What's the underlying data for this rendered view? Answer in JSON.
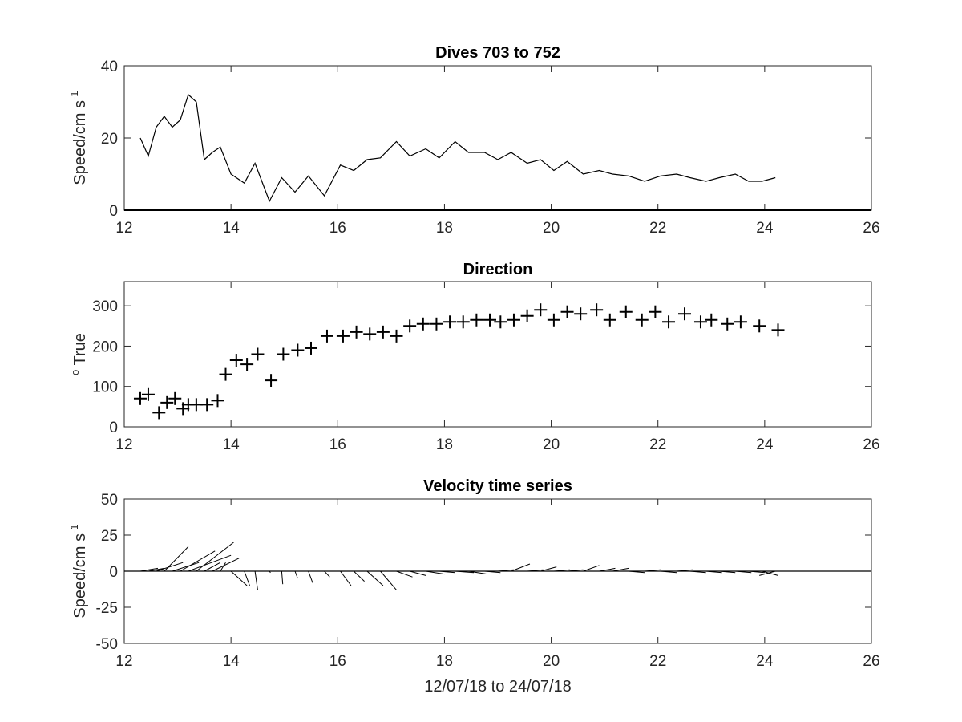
{
  "chart_data": [
    {
      "type": "line",
      "title": "Dives 703 to 752",
      "ylabel": "Speed/cm s",
      "ylabel_sup": "-1",
      "xlabel": "",
      "xlim": [
        12,
        26
      ],
      "ylim": [
        0,
        40
      ],
      "xticks": [
        12,
        14,
        16,
        18,
        20,
        22,
        24,
        26
      ],
      "yticks": [
        0,
        20,
        40
      ],
      "grid": false,
      "series": [
        {
          "color": "#000000",
          "x": [
            12.3,
            12.45,
            12.6,
            12.75,
            12.9,
            13.05,
            13.2,
            13.35,
            13.5,
            13.65,
            13.8,
            14.0,
            14.25,
            14.45,
            14.72,
            14.95,
            15.2,
            15.45,
            15.75,
            16.05,
            16.3,
            16.55,
            16.8,
            17.1,
            17.35,
            17.65,
            17.9,
            18.2,
            18.45,
            18.75,
            19.0,
            19.25,
            19.55,
            19.8,
            20.05,
            20.3,
            20.6,
            20.9,
            21.15,
            21.45,
            21.75,
            22.05,
            22.35,
            22.6,
            22.9,
            23.15,
            23.45,
            23.7,
            23.95,
            24.2
          ],
          "y": [
            20,
            15,
            23,
            26,
            23,
            25,
            32,
            30,
            14,
            16,
            17.5,
            10,
            7.5,
            13,
            2.5,
            9,
            5,
            9.5,
            4,
            12.5,
            11,
            14,
            14.5,
            19,
            15,
            17,
            14.5,
            19,
            16,
            16,
            14,
            16,
            13,
            14,
            11,
            13.5,
            10,
            11,
            10,
            9.5,
            8,
            9.5,
            10,
            9,
            8,
            9,
            10,
            8,
            8,
            9
          ]
        }
      ]
    },
    {
      "type": "scatter",
      "title": "Direction",
      "ylabel": " True",
      "ylabel_sup": "o",
      "xlabel": "",
      "xlim": [
        12,
        26
      ],
      "ylim": [
        0,
        360
      ],
      "xticks": [
        12,
        14,
        16,
        18,
        20,
        22,
        24,
        26
      ],
      "yticks": [
        0,
        100,
        200,
        300
      ],
      "grid": false,
      "marker": "+",
      "series": [
        {
          "color": "#000000",
          "x": [
            12.3,
            12.45,
            12.65,
            12.8,
            12.95,
            13.1,
            13.2,
            13.35,
            13.55,
            13.75,
            13.9,
            14.1,
            14.3,
            14.5,
            14.75,
            14.98,
            15.25,
            15.5,
            15.8,
            16.1,
            16.35,
            16.6,
            16.85,
            17.1,
            17.35,
            17.6,
            17.85,
            18.1,
            18.35,
            18.6,
            18.85,
            19.05,
            19.3,
            19.55,
            19.8,
            20.05,
            20.3,
            20.55,
            20.85,
            21.1,
            21.4,
            21.7,
            21.95,
            22.2,
            22.5,
            22.8,
            23.0,
            23.3,
            23.55,
            23.9,
            24.25
          ],
          "y": [
            70,
            80,
            35,
            60,
            70,
            45,
            55,
            55,
            55,
            65,
            130,
            165,
            155,
            180,
            115,
            180,
            190,
            195,
            225,
            225,
            235,
            230,
            235,
            225,
            250,
            255,
            255,
            260,
            260,
            265,
            265,
            260,
            265,
            275,
            290,
            265,
            285,
            280,
            290,
            265,
            285,
            265,
            285,
            260,
            280,
            260,
            265,
            255,
            260,
            250,
            240
          ]
        }
      ]
    },
    {
      "type": "line",
      "subtype": "stick-plot",
      "title": "Velocity time series",
      "ylabel": "Speed/cm s",
      "ylabel_sup": "-1",
      "xlabel": "12/07/18 to 24/07/18",
      "xlim": [
        12,
        26
      ],
      "ylim": [
        -50,
        50
      ],
      "xticks": [
        12,
        14,
        16,
        18,
        20,
        22,
        24,
        26
      ],
      "yticks": [
        -50,
        -25,
        0,
        25,
        50
      ],
      "ytick_labels": [
        "-50",
        "-25",
        "0",
        "25",
        "50"
      ],
      "grid": false,
      "description_units": "each stick starts at (t, 0) and points to (t+dx, dy); dx in days, dy in cm/s",
      "sticks": [
        {
          "t": 12.3,
          "dx": 0.33,
          "dy": 2
        },
        {
          "t": 12.45,
          "dx": 0.3,
          "dy": 2
        },
        {
          "t": 12.6,
          "dx": 0.5,
          "dy": 6
        },
        {
          "t": 12.75,
          "dx": 0.45,
          "dy": 17
        },
        {
          "t": 12.9,
          "dx": 0.5,
          "dy": 6
        },
        {
          "t": 13.05,
          "dx": 0.65,
          "dy": 14
        },
        {
          "t": 13.2,
          "dx": 0.8,
          "dy": 11
        },
        {
          "t": 13.35,
          "dx": 0.7,
          "dy": 20
        },
        {
          "t": 13.5,
          "dx": 0.3,
          "dy": 6
        },
        {
          "t": 13.65,
          "dx": 0.5,
          "dy": 9
        },
        {
          "t": 13.8,
          "dx": 0.1,
          "dy": 6
        },
        {
          "t": 14.0,
          "dx": 0.3,
          "dy": -10
        },
        {
          "t": 14.25,
          "dx": 0.1,
          "dy": -10
        },
        {
          "t": 14.45,
          "dx": 0.05,
          "dy": -13
        },
        {
          "t": 14.72,
          "dx": 0.02,
          "dy": -1
        },
        {
          "t": 14.95,
          "dx": 0.02,
          "dy": -9
        },
        {
          "t": 15.2,
          "dx": 0.05,
          "dy": -5
        },
        {
          "t": 15.45,
          "dx": 0.08,
          "dy": -8
        },
        {
          "t": 15.75,
          "dx": 0.1,
          "dy": -4
        },
        {
          "t": 16.05,
          "dx": 0.2,
          "dy": -10
        },
        {
          "t": 16.3,
          "dx": 0.2,
          "dy": -7
        },
        {
          "t": 16.55,
          "dx": 0.3,
          "dy": -10
        },
        {
          "t": 16.8,
          "dx": 0.3,
          "dy": -13
        },
        {
          "t": 17.1,
          "dx": 0.3,
          "dy": -4
        },
        {
          "t": 17.35,
          "dx": 0.3,
          "dy": -3
        },
        {
          "t": 17.65,
          "dx": 0.35,
          "dy": -2
        },
        {
          "t": 17.9,
          "dx": 0.3,
          "dy": -1
        },
        {
          "t": 18.2,
          "dx": 0.35,
          "dy": -1
        },
        {
          "t": 18.45,
          "dx": 0.35,
          "dy": -2
        },
        {
          "t": 18.75,
          "dx": 0.3,
          "dy": -1
        },
        {
          "t": 19.0,
          "dx": 0.3,
          "dy": 1
        },
        {
          "t": 19.25,
          "dx": 0.35,
          "dy": 5
        },
        {
          "t": 19.55,
          "dx": 0.3,
          "dy": 1
        },
        {
          "t": 19.8,
          "dx": 0.3,
          "dy": 3
        },
        {
          "t": 20.05,
          "dx": 0.3,
          "dy": 1
        },
        {
          "t": 20.3,
          "dx": 0.3,
          "dy": 1
        },
        {
          "t": 20.6,
          "dx": 0.3,
          "dy": 4
        },
        {
          "t": 20.9,
          "dx": 0.3,
          "dy": 2
        },
        {
          "t": 21.15,
          "dx": 0.3,
          "dy": 2
        },
        {
          "t": 21.45,
          "dx": 0.3,
          "dy": -1
        },
        {
          "t": 21.75,
          "dx": 0.3,
          "dy": 1
        },
        {
          "t": 22.05,
          "dx": 0.3,
          "dy": -1
        },
        {
          "t": 22.35,
          "dx": 0.3,
          "dy": 1
        },
        {
          "t": 22.6,
          "dx": 0.3,
          "dy": -1
        },
        {
          "t": 22.9,
          "dx": 0.3,
          "dy": -1
        },
        {
          "t": 23.15,
          "dx": 0.3,
          "dy": -1
        },
        {
          "t": 23.45,
          "dx": 0.3,
          "dy": -1
        },
        {
          "t": 23.7,
          "dx": 0.3,
          "dy": -1
        },
        {
          "t": 23.95,
          "dx": 0.3,
          "dy": -3
        },
        {
          "t": 24.2,
          "dx": -0.3,
          "dy": -3
        }
      ]
    }
  ]
}
